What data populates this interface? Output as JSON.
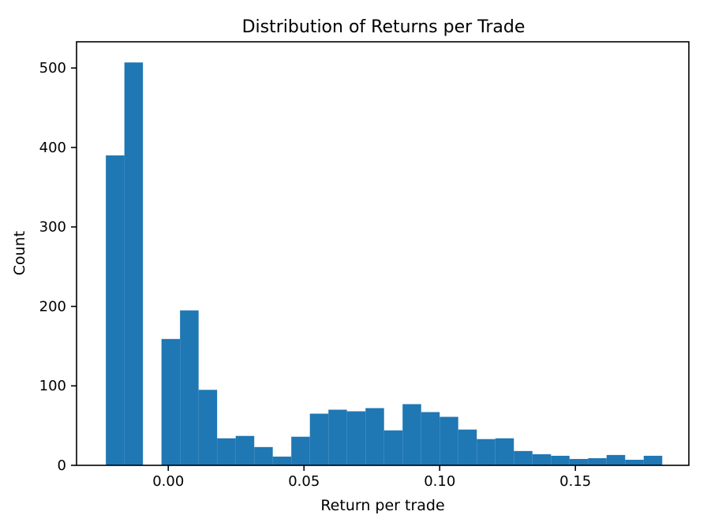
{
  "figure": {
    "background": "#ffffff"
  },
  "chart_data": {
    "type": "bar",
    "subtype": "histogram",
    "title": "Distribution of Returns per Trade",
    "xlabel": "Return per trade",
    "ylabel": "Count",
    "bar_color": "#1f77b4",
    "axis_color": "#000000",
    "grid": false,
    "legend": false,
    "n_bins": 30,
    "xlim": [
      -0.0338,
      0.1918
    ],
    "ylim": [
      0,
      533
    ],
    "xtick_values": [
      0.0,
      0.05,
      0.1,
      0.15
    ],
    "xtick_labels": [
      "0.00",
      "0.05",
      "0.10",
      "0.15"
    ],
    "ytick_values": [
      0,
      100,
      200,
      300,
      400,
      500
    ],
    "ytick_labels": [
      "0",
      "100",
      "200",
      "300",
      "400",
      "500"
    ],
    "bin_edges": [
      -0.023,
      -0.01617,
      -0.00933,
      -0.0025,
      0.00433,
      0.01117,
      0.018,
      0.02483,
      0.03167,
      0.0385,
      0.04533,
      0.05217,
      0.059,
      0.06583,
      0.07267,
      0.0795,
      0.08633,
      0.09317,
      0.1,
      0.10683,
      0.11367,
      0.1205,
      0.12733,
      0.13417,
      0.141,
      0.14783,
      0.15467,
      0.1615,
      0.16833,
      0.17517,
      0.182
    ],
    "counts": [
      390,
      507,
      0,
      159,
      195,
      95,
      34,
      37,
      23,
      11,
      36,
      65,
      70,
      68,
      72,
      44,
      77,
      67,
      61,
      45,
      33,
      34,
      18,
      14,
      12,
      8,
      9,
      13,
      7,
      12
    ]
  }
}
